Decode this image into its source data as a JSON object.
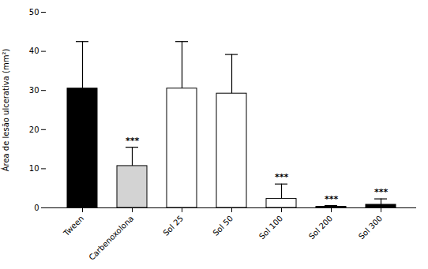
{
  "chart_data": {
    "type": "bar",
    "categories": [
      "Tween",
      "Carbenoxolona",
      "Sol 25",
      "Sol 50",
      "Sol 100",
      "Sol 200",
      "Sol 300"
    ],
    "values": [
      30.5,
      10.7,
      30.5,
      29.2,
      2.3,
      0.3,
      0.8
    ],
    "errors": [
      12.0,
      4.8,
      12.0,
      10.0,
      3.8,
      0.3,
      1.5
    ],
    "colors": [
      "#000000",
      "#d3d3d3",
      "#ffffff",
      "#ffffff",
      "#ffffff",
      "#000000",
      "#000000"
    ],
    "significance": [
      false,
      true,
      false,
      false,
      true,
      true,
      true
    ],
    "sig_label": "***",
    "ylabel": "Área de lesão ulcerativa (mm²)",
    "ylim": [
      0,
      50
    ],
    "yticks": [
      0,
      10,
      20,
      30,
      40,
      50
    ],
    "grid": false
  }
}
